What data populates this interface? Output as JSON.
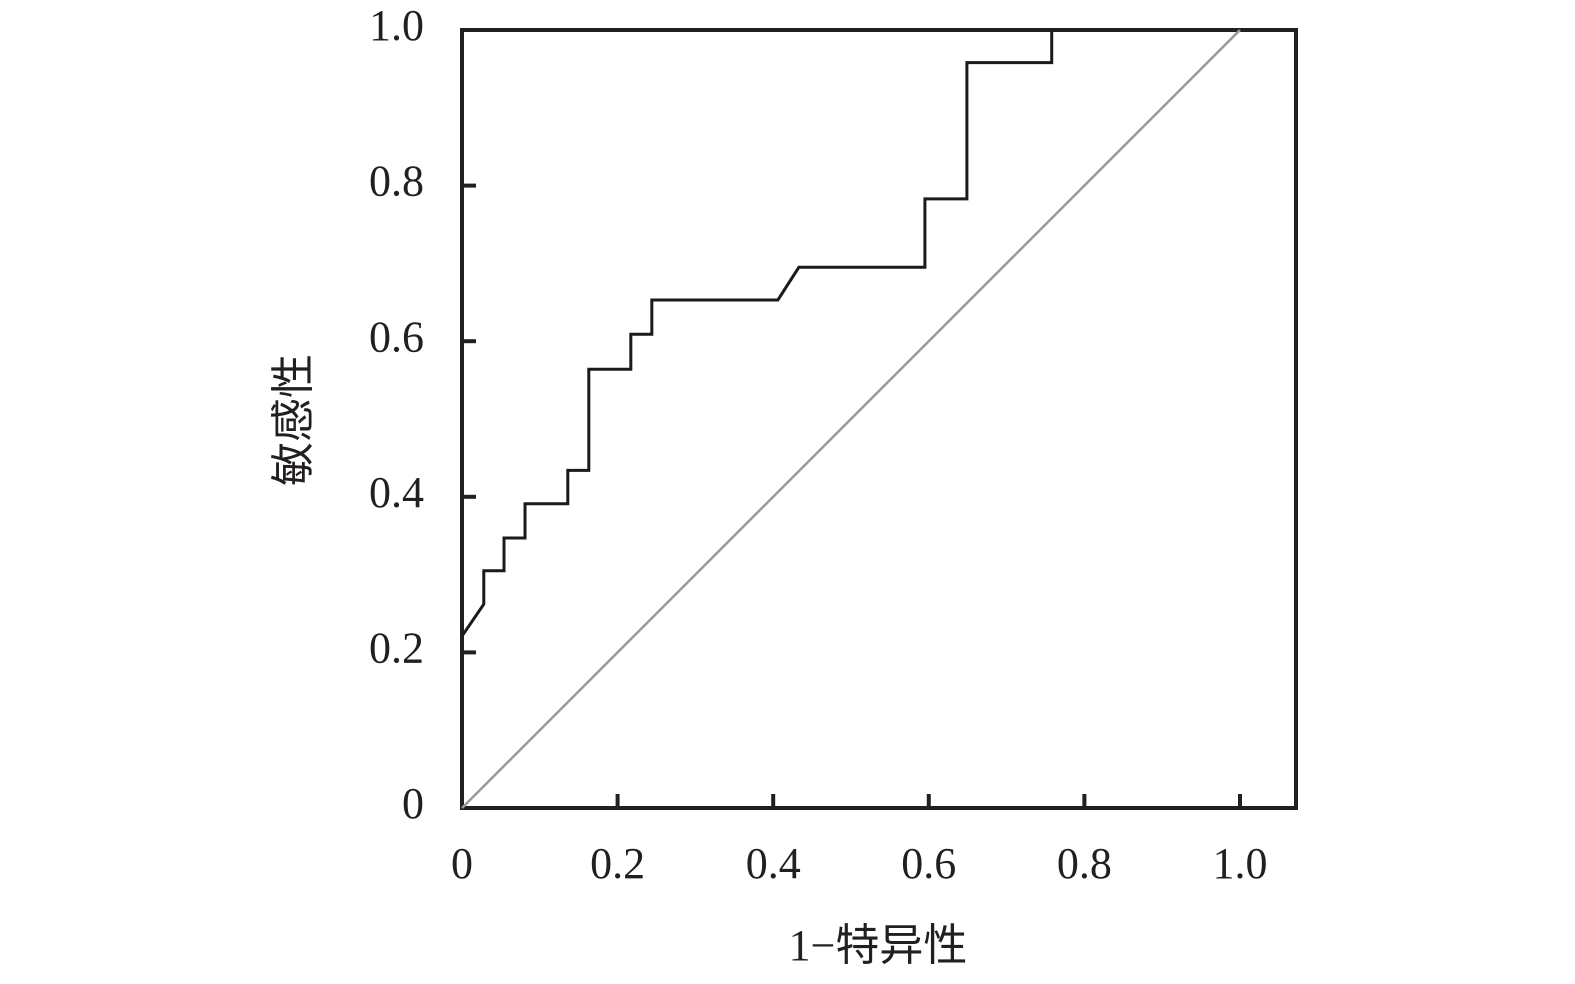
{
  "chart_data": {
    "type": "line",
    "x_label": "1−特异性",
    "y_label": "敏感性",
    "xlim": [
      0,
      1.072
    ],
    "ylim": [
      0,
      1
    ],
    "xticks": [
      0,
      0.2,
      0.4,
      0.6,
      0.8,
      {
        "value": 1,
        "label": "1.0"
      }
    ],
    "yticks": [
      0,
      0.2,
      0.4,
      0.6,
      0.8,
      {
        "value": 1,
        "label": "1.0"
      }
    ],
    "series": [
      {
        "color": "#1a1a1a",
        "x": [
          0,
          0.028,
          0.028,
          0.054,
          0.054,
          0.081,
          0.081,
          0.136,
          0.136,
          0.163,
          0.163,
          0.217,
          0.217,
          0.244,
          0.244,
          0.406,
          0.433,
          0.595,
          0.595,
          0.649,
          0.649,
          0.758,
          0.758
        ],
        "values": [
          0.221,
          0.262,
          0.305,
          0.305,
          0.347,
          0.347,
          0.391,
          0.391,
          0.434,
          0.434,
          0.564,
          0.564,
          0.609,
          0.609,
          0.653,
          0.653,
          0.695,
          0.695,
          0.783,
          0.783,
          0.958,
          0.958,
          1.0
        ]
      },
      {
        "color": "#9a9a9a",
        "x": [
          0,
          1
        ],
        "values": [
          0,
          1
        ]
      }
    ]
  }
}
